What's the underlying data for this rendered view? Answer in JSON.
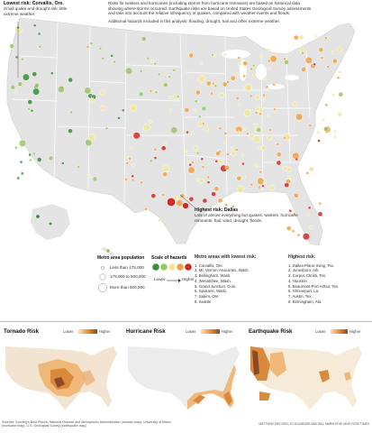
{
  "intro": {
    "p1": "Risks for twisters and hurricanes (including storms from hurricane remnants) are based on historical data showing where storms occurred. Earthquake risks are based on United States Geological Survey assessments and take into account the relative infrequency of quakes, compared with weather events and floods.",
    "p2": "Additional hazards included in this analysis: flooding, drought, hail and other extreme weather."
  },
  "callouts": {
    "lowest_title": "Lowest risk: Corvallis, Ore.",
    "lowest_desc": "Small quake and drought risk; little extreme weather.",
    "highest_title": "Highest risk: Dallas",
    "highest_desc": "Lots of almost everything but quakes: twisters, hurricane remnants, hail, wind, drought, floods."
  },
  "legend": {
    "population_title": "Metro area population",
    "population_items": [
      "Less than 175,000",
      "175,000 to 500,000",
      "More than 500,000"
    ],
    "scale_title": "Scale of hazards",
    "scale_lower": "Lower",
    "scale_higher": "Higher",
    "scale_colors": [
      "#3a8f3a",
      "#9cc46a",
      "#f1e79a",
      "#f2a144",
      "#d12a22"
    ]
  },
  "lowest_list": {
    "title": "Metro areas with lowest risk:",
    "items": [
      "1. Corvallis, Ore.",
      "2. Mt. Vernon-Anacortes, Wash.",
      "3. Bellingham, Wash.",
      "4. Wenatchee, Wash.",
      "5. Grand Junction, Colo.",
      "6. Spokane, Wash.",
      "7. Salem, Ore.",
      "8. Seattle"
    ]
  },
  "highest_list": {
    "title": "Highest risk:",
    "items": [
      "1. Dallas-Plano-Irving, Tex.",
      "2. Jonesboro, Ark.",
      "3. Corpus Christi, Tex.",
      "4. Houston",
      "5. Beaumont-Port Arthur, Tex.",
      "6. Shreveport, La.",
      "7. Austin, Tex.",
      "8. Birmingham, Ala."
    ]
  },
  "panels": [
    {
      "title": "Tornado Risk",
      "lower": "Lower",
      "higher": "Higher"
    },
    {
      "title": "Hurricane Risk",
      "lower": "Lower",
      "higher": "Higher"
    },
    {
      "title": "Earthquake Risk",
      "lower": "Lower",
      "higher": "Higher"
    }
  ],
  "credits": {
    "sources": "Sources: Sperling's Best Places; National Oceanic and Atmospheric Administration (tornado map); University of Miami (hurricane map); U.S. Geological Survey (earthquake map)",
    "byline": "MATTHEW ERICSON, JO DOLBEARE AND BILL MARSH/THE NEW YORK TIMES"
  },
  "colors": {
    "land": "#e4e4e4",
    "borders": "#ffffff",
    "water": "#ffffff"
  }
}
